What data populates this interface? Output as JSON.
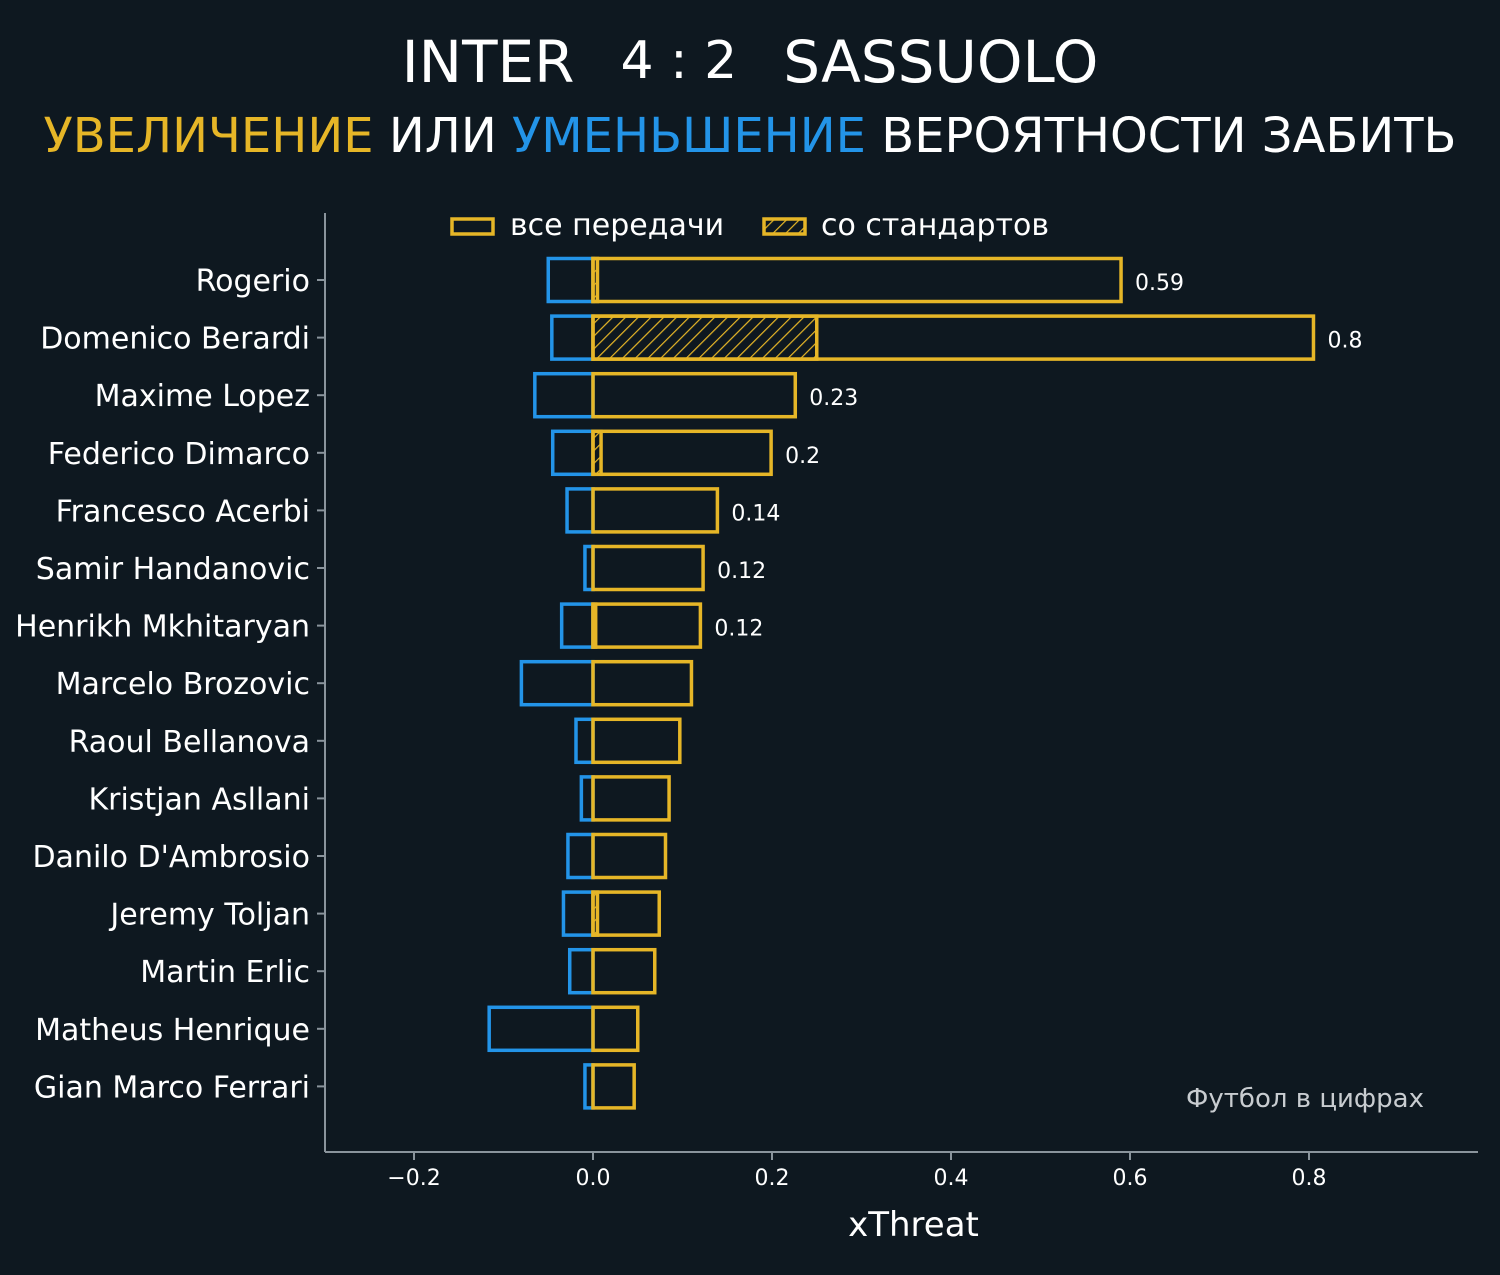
{
  "header": {
    "team_home": "INTER",
    "score": "4 : 2",
    "team_away": "SASSUOLO",
    "subtitle_up": "УВЕЛИЧЕНИЕ",
    "subtitle_or": " ИЛИ ",
    "subtitle_down": "УМЕНЬШЕНИЕ",
    "subtitle_rest": " ВЕРОЯТНОСТИ ЗАБИТЬ"
  },
  "watermark": "Футбол в цифрах",
  "colors": {
    "background": "#0e1820",
    "positive": "#e6b627",
    "negative": "#2394e8",
    "axis": "#8a949c"
  },
  "chart_data": {
    "type": "bar",
    "orientation": "horizontal",
    "xlabel": "xThreat",
    "xlim": [
      -0.3,
      0.95
    ],
    "xticks": [
      -0.2,
      0.0,
      0.2,
      0.4,
      0.6,
      0.8
    ],
    "xtick_labels": [
      "−0.2",
      "0.0",
      "0.2",
      "0.4",
      "0.6",
      "0.8"
    ],
    "legend": {
      "placement": "top",
      "entries": [
        {
          "name": "все передачи",
          "style": "outline"
        },
        {
          "name": "со стандартов",
          "style": "hatched"
        }
      ]
    },
    "players": [
      {
        "name": "Rogerio",
        "positive": 0.59,
        "negative": -0.05,
        "set_piece": 0.005,
        "label": "0.59"
      },
      {
        "name": "Domenico Berardi",
        "positive": 0.805,
        "negative": -0.046,
        "set_piece": 0.25,
        "label": "0.8"
      },
      {
        "name": "Maxime Lopez",
        "positive": 0.226,
        "negative": -0.065,
        "set_piece": 0,
        "label": "0.23"
      },
      {
        "name": "Federico Dimarco",
        "positive": 0.199,
        "negative": -0.045,
        "set_piece": 0.009,
        "label": "0.2"
      },
      {
        "name": "Francesco Acerbi",
        "positive": 0.139,
        "negative": -0.029,
        "set_piece": 0,
        "label": "0.14"
      },
      {
        "name": "Samir Handanovic",
        "positive": 0.123,
        "negative": -0.009,
        "set_piece": 0,
        "label": "0.12"
      },
      {
        "name": "Henrikh Mkhitaryan",
        "positive": 0.12,
        "negative": -0.035,
        "set_piece": 0.003,
        "label": "0.12"
      },
      {
        "name": "Marcelo Brozovic",
        "positive": 0.11,
        "negative": -0.08,
        "set_piece": 0,
        "label": ""
      },
      {
        "name": "Raoul Bellanova",
        "positive": 0.097,
        "negative": -0.019,
        "set_piece": 0,
        "label": ""
      },
      {
        "name": "Kristjan Asllani",
        "positive": 0.085,
        "negative": -0.013,
        "set_piece": 0,
        "label": ""
      },
      {
        "name": "Danilo D'Ambrosio",
        "positive": 0.081,
        "negative": -0.028,
        "set_piece": 0,
        "label": ""
      },
      {
        "name": "Jeremy Toljan",
        "positive": 0.074,
        "negative": -0.033,
        "set_piece": 0.005,
        "label": ""
      },
      {
        "name": "Martin Erlic",
        "positive": 0.069,
        "negative": -0.026,
        "set_piece": 0,
        "label": ""
      },
      {
        "name": "Matheus Henrique",
        "positive": 0.05,
        "negative": -0.116,
        "set_piece": 0,
        "label": ""
      },
      {
        "name": "Gian Marco Ferrari",
        "positive": 0.046,
        "negative": -0.009,
        "set_piece": 0,
        "label": ""
      }
    ]
  }
}
